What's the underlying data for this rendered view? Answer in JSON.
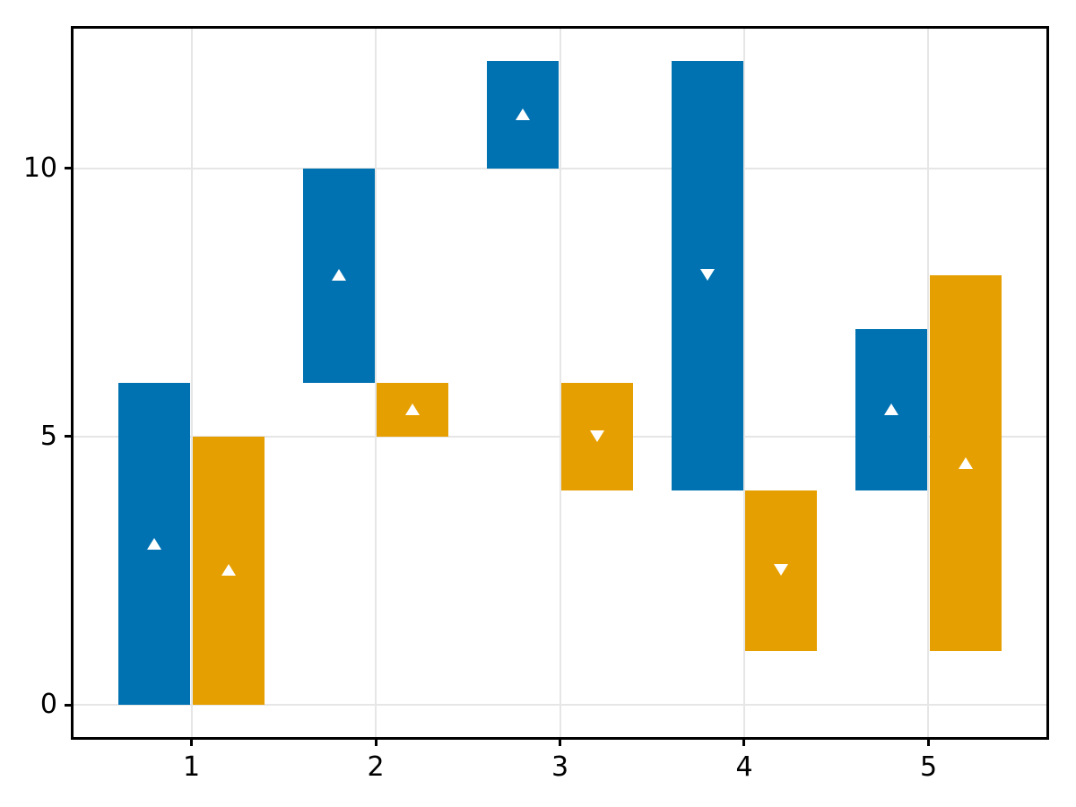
{
  "chart_data": {
    "type": "rangebar",
    "title": "",
    "xlabel": "",
    "ylabel": "",
    "xlim": [
      0.36,
      5.64
    ],
    "ylim": [
      -0.6,
      12.6
    ],
    "xticks": [
      1,
      2,
      3,
      4,
      5
    ],
    "xtick_labels": [
      "1",
      "2",
      "3",
      "4",
      "5"
    ],
    "yticks": [
      0,
      5,
      10
    ],
    "ytick_labels": [
      "0",
      "5",
      "10"
    ],
    "grid": true,
    "legend": "none",
    "bar_width": 0.39,
    "colors": {
      "blue": "#0072B2",
      "orange": "#E69F00",
      "marker": "#FFFFFF",
      "grid": "#E6E6E6",
      "spine": "#000000",
      "background": "#FFFFFF"
    },
    "series": [
      {
        "name": "blue-series",
        "color_key": "blue",
        "offset": -0.2,
        "bars": [
          {
            "x": 1,
            "low": 0,
            "high": 6,
            "marker": 3,
            "direction": "up"
          },
          {
            "x": 2,
            "low": 6,
            "high": 10,
            "marker": 8,
            "direction": "up"
          },
          {
            "x": 3,
            "low": 10,
            "high": 12,
            "marker": 11,
            "direction": "up"
          },
          {
            "x": 4,
            "low": 4,
            "high": 12,
            "marker": 8,
            "direction": "down"
          },
          {
            "x": 5,
            "low": 4,
            "high": 7,
            "marker": 5.5,
            "direction": "up"
          }
        ]
      },
      {
        "name": "orange-series",
        "color_key": "orange",
        "offset": 0.2,
        "bars": [
          {
            "x": 1,
            "low": 0,
            "high": 5,
            "marker": 2.5,
            "direction": "up"
          },
          {
            "x": 2,
            "low": 5,
            "high": 6,
            "marker": 5.5,
            "direction": "up"
          },
          {
            "x": 3,
            "low": 4,
            "high": 6,
            "marker": 5,
            "direction": "down"
          },
          {
            "x": 4,
            "low": 1,
            "high": 4,
            "marker": 2.5,
            "direction": "down"
          },
          {
            "x": 5,
            "low": 1,
            "high": 8,
            "marker": 4.5,
            "direction": "up"
          }
        ]
      }
    ]
  }
}
